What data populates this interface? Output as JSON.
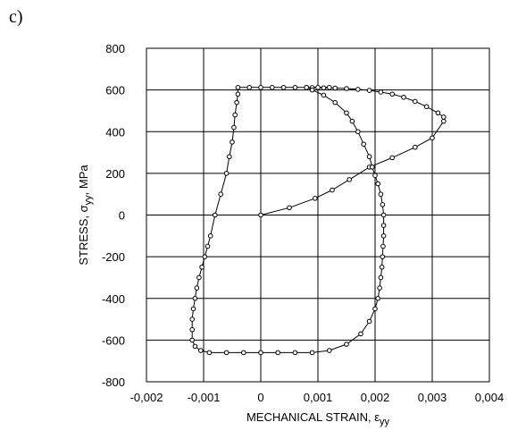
{
  "panel_label": "c)",
  "chart_data": {
    "type": "line",
    "title": "",
    "xlabel": "MECHANICAL STRAIN, ε",
    "xlabel_sub": "yy",
    "ylabel": "STRESS, σ",
    "ylabel_sub": "yy",
    "ylabel_unit": ", MPa",
    "xlim": [
      -0.002,
      0.004
    ],
    "ylim": [
      -800,
      800
    ],
    "xticks": [
      -0.002,
      -0.001,
      0,
      0.001,
      0.002,
      0.003,
      0.004
    ],
    "xtick_labels": [
      "-0,002",
      "-0,001",
      "0",
      "0,001",
      "0,002",
      "0,003",
      "0,004"
    ],
    "yticks": [
      -800,
      -600,
      -400,
      -200,
      0,
      200,
      400,
      600,
      800
    ],
    "ytick_labels": [
      "-800",
      "-600",
      "-400",
      "-200",
      "0",
      "200",
      "400",
      "600",
      "800"
    ],
    "grid": true,
    "marker": "open-circle",
    "color": "#000000",
    "series": [
      {
        "values": [
          [
            0,
            0
          ],
          [
            0.0005,
            35
          ],
          [
            0.00095,
            80
          ],
          [
            0.00125,
            120
          ],
          [
            0.00155,
            170
          ],
          [
            0.0019,
            230
          ],
          [
            0.0023,
            275
          ],
          [
            0.0027,
            325
          ],
          [
            0.003,
            370
          ],
          [
            0.0032,
            450
          ],
          [
            0.0032,
            470
          ],
          [
            0.0031,
            490
          ],
          [
            0.0029,
            520
          ],
          [
            0.0027,
            545
          ],
          [
            0.0025,
            565
          ],
          [
            0.0023,
            580
          ],
          [
            0.0021,
            590
          ],
          [
            0.0019,
            598
          ],
          [
            0.0017,
            603
          ],
          [
            0.0015,
            607
          ],
          [
            0.0013,
            609
          ],
          [
            0.0011,
            610
          ],
          [
            0.0009,
            611
          ],
          [
            0.0008,
            612
          ],
          [
            0.0009,
            600
          ],
          [
            0.0011,
            575
          ],
          [
            0.0013,
            540
          ],
          [
            0.0015,
            490
          ],
          [
            0.0016,
            450
          ],
          [
            0.0017,
            400
          ],
          [
            0.0018,
            340
          ],
          [
            0.0019,
            280
          ],
          [
            0.00195,
            230
          ],
          [
            0.002,
            190
          ],
          [
            0.00205,
            150
          ],
          [
            0.0021,
            100
          ],
          [
            0.00213,
            50
          ],
          [
            0.00215,
            0
          ],
          [
            0.00215,
            -50
          ],
          [
            0.00215,
            -100
          ],
          [
            0.00214,
            -150
          ],
          [
            0.00213,
            -200
          ],
          [
            0.00212,
            -250
          ],
          [
            0.0021,
            -300
          ],
          [
            0.00208,
            -350
          ],
          [
            0.00205,
            -400
          ],
          [
            0.002,
            -450
          ],
          [
            0.0019,
            -510
          ],
          [
            0.00175,
            -570
          ],
          [
            0.0015,
            -620
          ],
          [
            0.0012,
            -650
          ],
          [
            0.0009,
            -660
          ],
          [
            0.0006,
            -660
          ],
          [
            0.0003,
            -660
          ],
          [
            0,
            -660
          ],
          [
            -0.0003,
            -660
          ],
          [
            -0.0006,
            -660
          ],
          [
            -0.0009,
            -660
          ],
          [
            -0.00105,
            -650
          ],
          [
            -0.00115,
            -630
          ],
          [
            -0.0012,
            -600
          ],
          [
            -0.0012,
            -550
          ],
          [
            -0.0012,
            -500
          ],
          [
            -0.00118,
            -450
          ],
          [
            -0.00115,
            -400
          ],
          [
            -0.00112,
            -350
          ],
          [
            -0.00108,
            -300
          ],
          [
            -0.00103,
            -250
          ],
          [
            -0.00098,
            -200
          ],
          [
            -0.00093,
            -150
          ],
          [
            -0.00088,
            -100
          ],
          [
            -0.0008,
            0
          ],
          [
            -0.0007,
            100
          ],
          [
            -0.0006,
            200
          ],
          [
            -0.00055,
            280
          ],
          [
            -0.0005,
            350
          ],
          [
            -0.00047,
            420
          ],
          [
            -0.00045,
            480
          ],
          [
            -0.00042,
            540
          ],
          [
            -0.0004,
            580
          ],
          [
            -0.0004,
            612
          ],
          [
            -0.0002,
            612
          ],
          [
            0,
            612
          ],
          [
            0.0002,
            612
          ],
          [
            0.0004,
            612
          ],
          [
            0.0006,
            612
          ],
          [
            0.0008,
            612
          ],
          [
            0.001,
            612
          ],
          [
            0.0012,
            612
          ]
        ]
      }
    ]
  }
}
